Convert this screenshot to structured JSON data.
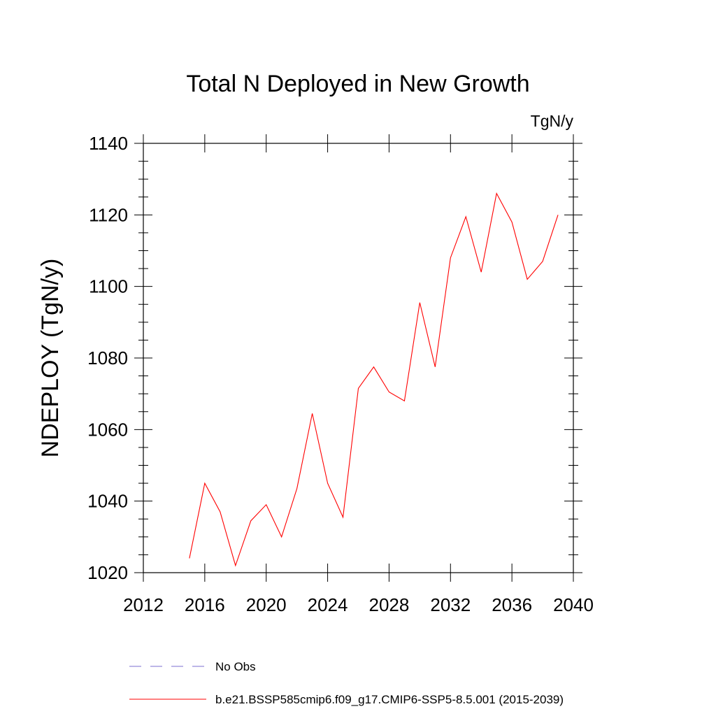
{
  "chart_data": {
    "type": "line",
    "title": "Total N Deployed in New Growth",
    "units_label": "TgN/y",
    "ylabel": "NDEPLOY  (TgN/y)",
    "xlabel": "",
    "xlim": [
      2012,
      2040
    ],
    "ylim": [
      1020,
      1140
    ],
    "x_ticks": [
      2012,
      2016,
      2020,
      2024,
      2028,
      2032,
      2036,
      2040
    ],
    "y_ticks": [
      1020,
      1040,
      1060,
      1080,
      1100,
      1120,
      1140
    ],
    "x_tick_labels": [
      "2012",
      "2016",
      "2020",
      "2024",
      "2028",
      "2032",
      "2036",
      "2040"
    ],
    "y_tick_labels": [
      "1020",
      "1040",
      "1060",
      "1080",
      "1100",
      "1120",
      "1140"
    ],
    "grid": false,
    "legend": {
      "placement": "bottom",
      "entries": [
        {
          "label": "No Obs",
          "color": "#7b6fd0",
          "style": "dashed"
        },
        {
          "label": "b.e21.BSSP585cmip6.f09_g17.CMIP6-SSP5-8.5.001 (2015-2039)",
          "color": "#ff0000",
          "style": "solid"
        }
      ]
    },
    "series": [
      {
        "name": "b.e21.BSSP585cmip6.f09_g17.CMIP6-SSP5-8.5.001 (2015-2039)",
        "color": "#ff0000",
        "x": [
          2015,
          2016,
          2017,
          2018,
          2019,
          2020,
          2021,
          2022,
          2023,
          2024,
          2025,
          2026,
          2027,
          2028,
          2029,
          2030,
          2031,
          2032,
          2033,
          2034,
          2035,
          2036,
          2037,
          2038,
          2039
        ],
        "values": [
          1024,
          1045,
          1037,
          1022,
          1034.5,
          1039,
          1030,
          1043.5,
          1064.5,
          1045,
          1035.5,
          1071.5,
          1077.5,
          1070.5,
          1068,
          1095.5,
          1077.5,
          1108,
          1119.5,
          1104,
          1126,
          1118,
          1102,
          1107,
          1120
        ]
      }
    ]
  }
}
